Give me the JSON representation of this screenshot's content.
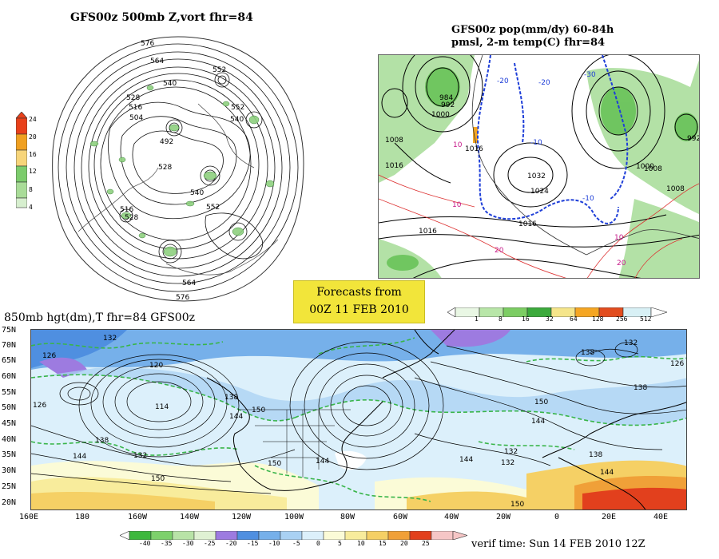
{
  "panels": {
    "p500": {
      "title": "GFS00z  500mb Z,vort    fhr=84"
    },
    "pop": {
      "title_line1": "GFS00z pop(mm/dy) 60-84h",
      "title_line2": "pmsl, 2-m temp(C)  fhr=84"
    },
    "h850": {
      "title": "850mb hgt(dm),T  fhr=84 GFS00z"
    }
  },
  "forecast_badge": {
    "line1": "Forecasts from",
    "line2": "00Z 11 FEB 2010"
  },
  "verif_time": "verif time: Sun 14 FEB 2010 12Z",
  "vort_colorbar": {
    "labels": [
      "24",
      "20",
      "16",
      "12",
      "8",
      "4"
    ],
    "colors": [
      "#e8401a",
      "#f0a020",
      "#f7d57a",
      "#7ccc6c",
      "#a9dc98",
      "#d7efcf"
    ]
  },
  "pop_colorbar": {
    "labels": [
      "1",
      "8",
      "16",
      "32",
      "64",
      "128",
      "256",
      "512"
    ],
    "colors": [
      "#e9f7e4",
      "#b8e6a8",
      "#7ccd63",
      "#3caa3c",
      "#f5e58a",
      "#f5a623",
      "#e24d1f",
      "#d8f0f5"
    ]
  },
  "temp_colorbar": {
    "labels": [
      "-40",
      "-35",
      "-30",
      "-25",
      "-20",
      "-15",
      "-10",
      "-5",
      "0",
      "5",
      "10",
      "15",
      "20",
      "25"
    ],
    "colors": [
      "#3db83d",
      "#7dd16b",
      "#b8e3a7",
      "#dff1d3",
      "#9d7be0",
      "#4f8fe0",
      "#76b0ea",
      "#a9d1f3",
      "#dcf0fb",
      "#fbfbd7",
      "#f8ec9c",
      "#f5d065",
      "#f0a038",
      "#e2401d",
      "#f6c6c6"
    ]
  },
  "map_850": {
    "lat_labels": [
      "75N",
      "70N",
      "65N",
      "60N",
      "55N",
      "50N",
      "45N",
      "40N",
      "35N",
      "30N",
      "25N",
      "20N"
    ],
    "lon_labels": [
      "160E",
      "180",
      "160W",
      "140W",
      "120W",
      "100W",
      "80W",
      "60W",
      "40W",
      "20W",
      "0",
      "20E",
      "40E"
    ],
    "contour_labels": [
      "132",
      "126",
      "120",
      "126",
      "114",
      "138",
      "144",
      "150",
      "138",
      "144",
      "132",
      "150",
      "144",
      "150",
      "144",
      "132",
      "150",
      "144",
      "138",
      "138",
      "132",
      "144",
      "126",
      "138",
      "132",
      "150"
    ]
  },
  "map_500": {
    "contour_labels": [
      "576",
      "564",
      "552",
      "540",
      "528",
      "516",
      "504",
      "492",
      "540",
      "528",
      "552",
      "564",
      "576",
      "516",
      "528",
      "540",
      "552"
    ]
  },
  "map_pop": {
    "contour_labels": [
      "992",
      "984",
      "1000",
      "1008",
      "1016",
      "1024",
      "1032",
      "1016",
      "1016",
      "1008",
      "1000",
      "992",
      "1008",
      "1016",
      "-10",
      "-20",
      "-30",
      "10",
      "10",
      "-10",
      "-20",
      "20",
      "10",
      "20"
    ]
  }
}
